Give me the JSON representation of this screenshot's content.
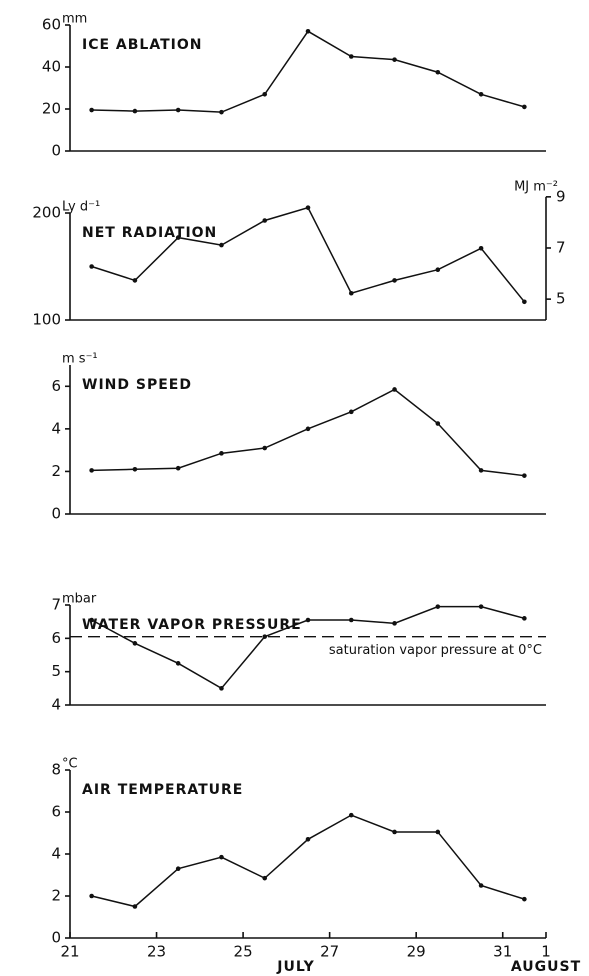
{
  "chart_data": [
    {
      "type": "line",
      "title": "ICE ABLATION",
      "y_unit": "mm",
      "x": [
        21.5,
        22.5,
        23.5,
        24.5,
        25.5,
        26.5,
        27.5,
        28.5,
        29.5,
        30.5,
        31.5
      ],
      "values": [
        19.5,
        19,
        19.5,
        18.5,
        27,
        57,
        45,
        43.5,
        37.5,
        27,
        21
      ],
      "ylim": [
        0,
        60
      ],
      "yticks": [
        0,
        20,
        40,
        60
      ],
      "color": "#111111"
    },
    {
      "type": "line",
      "title": "NET RADIATION",
      "y_unit": "Ly d⁻¹",
      "y2_unit": "MJ m⁻²",
      "x": [
        21.5,
        22.5,
        23.5,
        24.5,
        25.5,
        26.5,
        27.5,
        28.5,
        29.5,
        30.5,
        31.5
      ],
      "values": [
        150,
        137,
        177,
        170,
        193,
        205,
        125,
        137,
        147,
        167,
        117
      ],
      "ylim": [
        100,
        200
      ],
      "yticks": [
        100,
        200
      ],
      "y2lim": [
        4.184,
        8.368
      ],
      "y2ticks": [
        5,
        7,
        9
      ],
      "color": "#111111"
    },
    {
      "type": "line",
      "title": "WIND SPEED",
      "y_unit": "m s⁻¹",
      "x": [
        21.5,
        22.5,
        23.5,
        24.5,
        25.5,
        26.5,
        27.5,
        28.5,
        29.5,
        30.5,
        31.5
      ],
      "values": [
        2.05,
        2.1,
        2.15,
        2.85,
        3.1,
        4.0,
        4.8,
        5.85,
        4.25,
        2.05,
        1.8
      ],
      "ylim": [
        0,
        7
      ],
      "yticks": [
        0,
        2,
        4,
        6
      ],
      "color": "#111111"
    },
    {
      "type": "line",
      "title": "WATER VAPOR PRESSURE",
      "y_unit": "mbar",
      "x": [
        21.5,
        22.5,
        23.5,
        24.5,
        25.5,
        26.5,
        27.5,
        28.5,
        29.5,
        30.5,
        31.5
      ],
      "values": [
        6.55,
        5.85,
        5.25,
        4.5,
        6.05,
        6.55,
        6.55,
        6.45,
        6.95,
        6.95,
        6.6
      ],
      "ylim": [
        4,
        7
      ],
      "yticks": [
        4,
        5,
        6,
        7
      ],
      "color": "#111111",
      "reference_line": {
        "value": 6.05,
        "label": "saturation vapor pressure at 0°C"
      }
    },
    {
      "type": "line",
      "title": "AIR TEMPERATURE",
      "y_unit": "°C",
      "x": [
        21.5,
        22.5,
        23.5,
        24.5,
        25.5,
        26.5,
        27.5,
        28.5,
        29.5,
        30.5,
        31.5
      ],
      "values": [
        2.0,
        1.5,
        3.3,
        3.85,
        2.85,
        4.7,
        5.85,
        5.05,
        5.05,
        2.5,
        1.85
      ],
      "ylim": [
        0,
        8
      ],
      "yticks": [
        0,
        2,
        4,
        6,
        8
      ],
      "color": "#111111",
      "xlim": [
        21,
        32
      ],
      "xticks": [
        21,
        23,
        25,
        27,
        29,
        31,
        {
          "value": 32,
          "label": "1"
        }
      ],
      "month_labels": [
        "JULY",
        "AUGUST"
      ]
    }
  ]
}
